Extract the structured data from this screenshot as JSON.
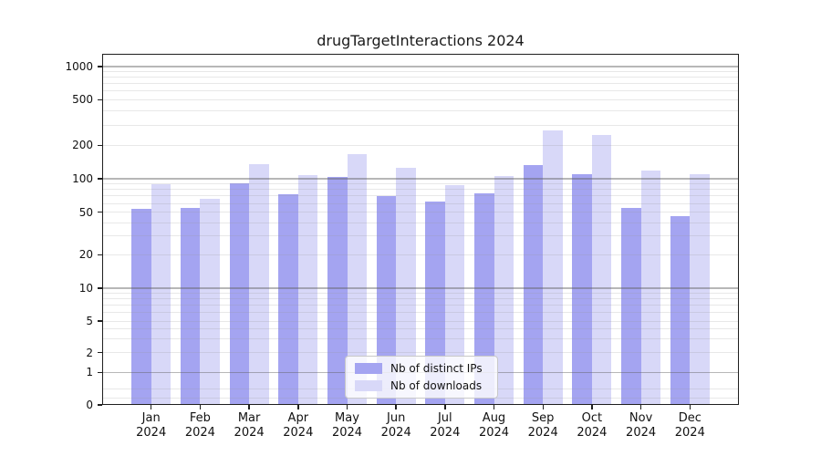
{
  "chart_data": {
    "type": "bar",
    "title": "drugTargetInteractions 2024",
    "categories": [
      "Jan",
      "Feb",
      "Mar",
      "Apr",
      "May",
      "Jun",
      "Jul",
      "Aug",
      "Sep",
      "Oct",
      "Nov",
      "Dec"
    ],
    "category_year": "2024",
    "series": [
      {
        "name": "Nb of distinct IPs",
        "color": "#a4a4f1",
        "values": [
          54,
          55,
          91,
          73,
          104,
          70,
          63,
          74,
          133,
          111,
          55,
          46
        ]
      },
      {
        "name": "Nb of downloads",
        "color": "#d8d8f8",
        "values": [
          90,
          66,
          135,
          108,
          168,
          126,
          88,
          106,
          270,
          245,
          118,
          109
        ]
      }
    ],
    "yticks": [
      0,
      1,
      2,
      5,
      10,
      20,
      50,
      100,
      200,
      500,
      1000
    ],
    "ylim": [
      0,
      1000
    ],
    "yscale": "log-like with zero baseline (ticks 0,1,2,5,10,20,50,100,200,500,1000)",
    "grid": "horizontal; gray major lines at 1,10,100,1000; faint minor lines at 2-9 per decade",
    "legend": {
      "position": "lower center",
      "entries": [
        "Nb of distinct IPs",
        "Nb of downloads"
      ]
    },
    "xlabel": "",
    "ylabel": ""
  }
}
